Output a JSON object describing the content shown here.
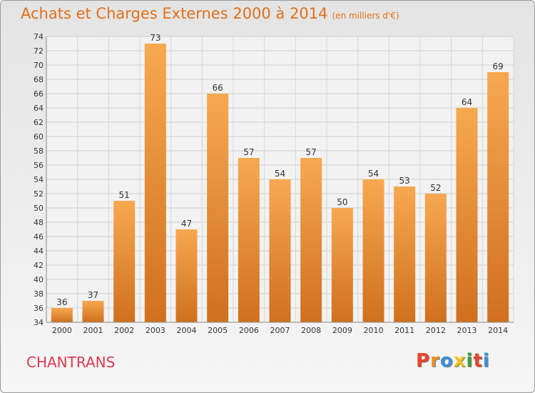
{
  "title": "Achats et Charges Externes 2000 à 2014",
  "subtitle": "(en milliers d'€)",
  "commune": "CHANTRANS",
  "logo": {
    "letters": [
      "P",
      "r",
      "o",
      "x",
      "i",
      "t",
      "i"
    ],
    "colors": [
      "#e8452c",
      "#f28c28",
      "#3a8fd6",
      "#f2c21b",
      "#3a9e3a",
      "#e8452c",
      "#3a8fd6"
    ]
  },
  "colors": {
    "bar_light": "#f7a850",
    "bar_dark": "#d0701e",
    "title": "#e0701a",
    "commune": "#d83a52"
  },
  "chart_data": {
    "type": "bar",
    "title": "Achats et Charges Externes 2000 à 2014",
    "subtitle": "(en milliers d'€)",
    "categories": [
      "2000",
      "2001",
      "2002",
      "2003",
      "2004",
      "2005",
      "2006",
      "2007",
      "2008",
      "2009",
      "2010",
      "2011",
      "2012",
      "2013",
      "2014"
    ],
    "values": [
      36,
      37,
      51,
      73,
      47,
      66,
      57,
      54,
      57,
      50,
      54,
      53,
      52,
      64,
      69
    ],
    "ylim": [
      34,
      74
    ],
    "yticks": [
      34,
      36,
      38,
      40,
      42,
      44,
      46,
      48,
      50,
      52,
      54,
      56,
      58,
      60,
      62,
      64,
      66,
      68,
      70,
      72,
      74
    ],
    "grid": true,
    "xlabel": "",
    "ylabel": ""
  }
}
